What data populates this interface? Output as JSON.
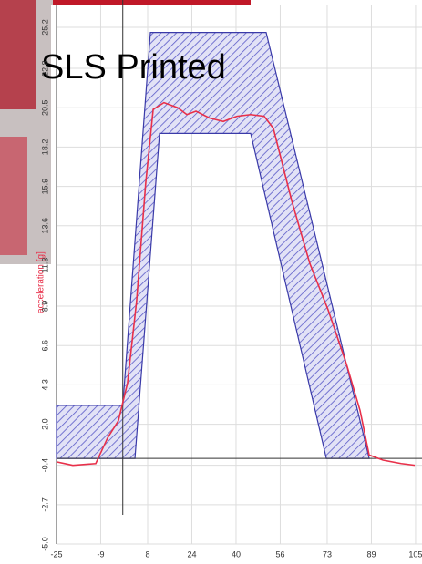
{
  "chart_data": {
    "type": "line",
    "title": "SLS Printed",
    "y_label": "acceleration [g]",
    "xlim": [
      -25,
      107
    ],
    "ylim": [
      -5.0,
      25.2
    ],
    "xticks": [
      -25,
      -9,
      8,
      24,
      40,
      56,
      73,
      89,
      105
    ],
    "yticks": [
      {
        "value": -5.0,
        "label": "-5.0"
      },
      -2.7,
      -0.4,
      {
        "value": 2.0,
        "label": "2.0"
      },
      4.3,
      6.6,
      8.9,
      11.3,
      13.6,
      15.9,
      18.2,
      20.5,
      22.8,
      25.2
    ],
    "grid": true,
    "vline": -1,
    "hline": 0,
    "envelope": {
      "color": "#3a3aa8",
      "upper": {
        "x": [
          -25,
          -1,
          9.0,
          50.9,
          88.2
        ],
        "y": [
          3.1,
          3.1,
          24.9,
          24.9,
          0
        ]
      },
      "lower": {
        "x": [
          -25,
          3.4,
          12.3,
          45.3,
          72.7,
          88.2
        ],
        "y": [
          0,
          0,
          19.0,
          19.0,
          0,
          0
        ]
      }
    },
    "series": [
      {
        "color": "#e8304a",
        "x": [
          -25,
          -19.1,
          -10.8,
          -6.5,
          -2.6,
          0.7,
          4.0,
          7.3,
          10.0,
          13.9,
          18.9,
          22.2,
          25.5,
          30.4,
          35.4,
          40.3,
          45.3,
          50.2,
          53.5,
          60.1,
          66.7,
          73.3,
          80.0,
          84.9,
          88.2,
          93.2,
          99.8,
          104.7
        ],
        "values": [
          -0.2,
          -0.4,
          -0.3,
          1.2,
          2.2,
          4.4,
          9.2,
          16.1,
          20.4,
          20.8,
          20.5,
          20.1,
          20.3,
          19.9,
          19.7,
          20.0,
          20.1,
          20.0,
          19.3,
          15.1,
          11.4,
          8.7,
          5.5,
          2.8,
          0.2,
          -0.1,
          -0.3,
          -0.4
        ]
      }
    ]
  }
}
